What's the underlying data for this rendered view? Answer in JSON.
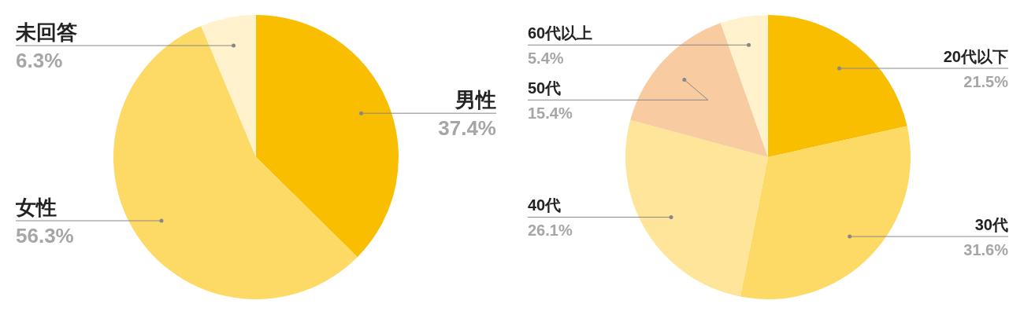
{
  "chart_data": [
    {
      "type": "pie",
      "categories": [
        "男性",
        "女性",
        "未回答"
      ],
      "values": [
        37.4,
        56.3,
        6.3
      ],
      "colors": [
        "#f9be00",
        "#fdd966",
        "#fff2cc"
      ],
      "value_labels": [
        "37.4%",
        "56.3%",
        "6.3%"
      ]
    },
    {
      "type": "pie",
      "categories": [
        "20代以下",
        "30代",
        "40代",
        "50代",
        "60代以上"
      ],
      "values": [
        21.5,
        31.6,
        26.1,
        15.4,
        5.4
      ],
      "colors": [
        "#f9be00",
        "#fdd966",
        "#fee599",
        "#f8cba0",
        "#fff2cc"
      ],
      "value_labels": [
        "21.5%",
        "31.6%",
        "26.1%",
        "15.4%",
        "5.4%"
      ]
    }
  ]
}
